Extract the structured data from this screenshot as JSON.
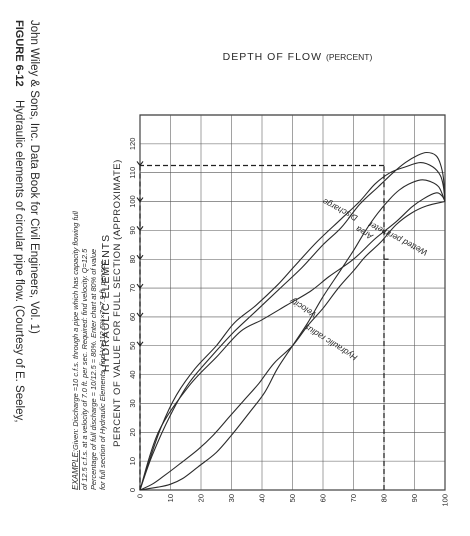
{
  "chart_data": {
    "type": "line",
    "title": "HYDRAULIC ELEMENTS",
    "xlabel": "PERCENT OF VALUE FOR FULL SECTION (APPROXIMATE)",
    "ylabel_main": "DEPTH OF FLOW",
    "ylabel_suffix": "(PERCENT)",
    "xlim": [
      0,
      130
    ],
    "ylim": [
      0,
      100
    ],
    "x_ticks": [
      "0",
      "10",
      "20",
      "30",
      "40",
      "50",
      "60",
      "70",
      "80",
      "90",
      "100",
      "110",
      "120"
    ],
    "y_ticks": [
      "0",
      "10",
      "20",
      "30",
      "40",
      "50",
      "60",
      "70",
      "80",
      "90",
      "100"
    ],
    "series": [
      {
        "name": "Wetted perimeter",
        "points": [
          [
            0,
            0
          ],
          [
            20,
            6
          ],
          [
            36,
            16
          ],
          [
            46,
            25
          ],
          [
            55,
            33
          ],
          [
            59,
            40
          ],
          [
            64,
            48
          ],
          [
            69,
            56
          ],
          [
            74,
            62
          ],
          [
            80,
            70
          ],
          [
            87,
            77
          ],
          [
            93,
            84
          ],
          [
            98,
            89
          ],
          [
            101,
            93
          ],
          [
            103,
            97
          ],
          [
            102,
            99
          ],
          [
            100,
            100
          ]
        ]
      },
      {
        "name": "Area",
        "points": [
          [
            0,
            0
          ],
          [
            2,
            4
          ],
          [
            5,
            8
          ],
          [
            9,
            13
          ],
          [
            14,
            19
          ],
          [
            19,
            24
          ],
          [
            25,
            29
          ],
          [
            31,
            34
          ],
          [
            37,
            39
          ],
          [
            44,
            44
          ],
          [
            50,
            50
          ],
          [
            57,
            55
          ],
          [
            63,
            60
          ],
          [
            70,
            65
          ],
          [
            76,
            70
          ],
          [
            81,
            74
          ],
          [
            86,
            79
          ],
          [
            92,
            84
          ],
          [
            96,
            89
          ],
          [
            98.5,
            94
          ],
          [
            100,
            100
          ]
        ]
      },
      {
        "name": "Discharge",
        "points": [
          [
            0,
            0
          ],
          [
            1,
            6
          ],
          [
            2,
            10
          ],
          [
            4,
            14
          ],
          [
            8,
            19
          ],
          [
            13,
            25
          ],
          [
            19,
            30
          ],
          [
            27,
            36
          ],
          [
            34,
            41
          ],
          [
            42,
            45
          ],
          [
            50,
            50
          ],
          [
            58,
            55
          ],
          [
            67,
            60
          ],
          [
            75,
            65
          ],
          [
            83,
            70
          ],
          [
            90,
            74
          ],
          [
            96,
            78
          ],
          [
            101,
            82
          ],
          [
            104,
            85
          ],
          [
            106,
            88
          ],
          [
            107.5,
            92
          ],
          [
            107,
            95
          ],
          [
            105,
            98
          ],
          [
            100,
            100
          ]
        ]
      },
      {
        "name": "Hydraulic radius",
        "points": [
          [
            0,
            0
          ],
          [
            12,
            4
          ],
          [
            26,
            10
          ],
          [
            37,
            16
          ],
          [
            47,
            24
          ],
          [
            55,
            31
          ],
          [
            62,
            38
          ],
          [
            70,
            46
          ],
          [
            77,
            53
          ],
          [
            85,
            60
          ],
          [
            91,
            66
          ],
          [
            99,
            72
          ],
          [
            105,
            78
          ],
          [
            110,
            83
          ],
          [
            113.5,
            87
          ],
          [
            116,
            91
          ],
          [
            117,
            94
          ],
          [
            116,
            97
          ],
          [
            113,
            98.5
          ],
          [
            108,
            99.5
          ],
          [
            100,
            100
          ]
        ]
      },
      {
        "name": "Velocity",
        "points": [
          [
            0,
            0
          ],
          [
            10,
            3
          ],
          [
            22,
            7
          ],
          [
            33,
            12
          ],
          [
            42,
            18
          ],
          [
            50,
            25
          ],
          [
            58,
            31
          ],
          [
            64,
            38
          ],
          [
            71,
            45
          ],
          [
            78,
            51
          ],
          [
            86,
            58
          ],
          [
            94,
            66
          ],
          [
            100,
            72
          ],
          [
            106,
            77
          ],
          [
            110,
            82
          ],
          [
            112,
            87
          ],
          [
            113.5,
            92
          ],
          [
            112,
            96
          ],
          [
            109,
            98.5
          ],
          [
            105,
            99.5
          ],
          [
            100,
            100
          ]
        ]
      }
    ],
    "example_guides": {
      "depth": 80,
      "discharge_percent": 80,
      "velocity_percent": 112.5,
      "marked_x": [
        50,
        60,
        70,
        80,
        90,
        100,
        112.5
      ]
    },
    "example_text": {
      "label": "EXAMPLE:",
      "line1": "Given: Discharge =10 c.f.s. through a pipe which has capacity flowing full",
      "line2": "of 12.5 c.f.s. at a velocity of 7.0 ft. per sec. Required: find velocity. Q=12.5",
      "line3": "Percentage of full discharge = 10/12.5 = 80%.  Enter chart at 80% of value",
      "line4": "for full section of Hydraulic Elements, find V=112.5%×7=7.9 ft. per sec."
    }
  },
  "caption": {
    "figure_label": "FIGURE 6-12",
    "line1": "Hydraulic elements of circular pipe flow. (Courtesy of E. Seeley,",
    "line2": "John Wiley & Sons, Inc. Data Book for Civil Engineers, Vol. 1)"
  }
}
